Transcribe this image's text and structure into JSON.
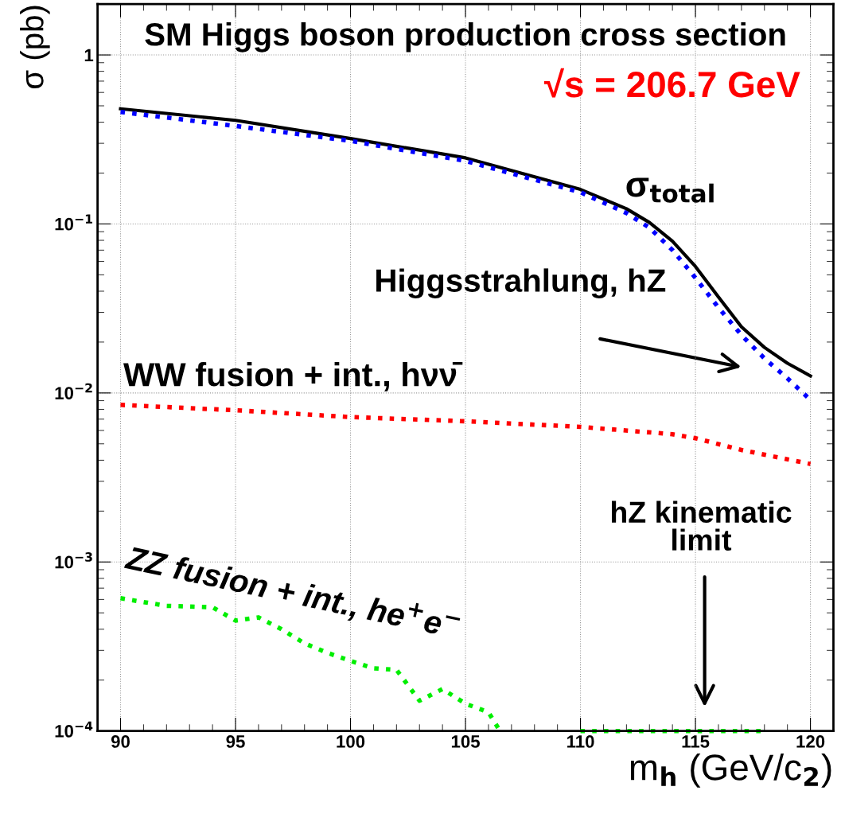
{
  "chart_data": {
    "type": "line",
    "title": "SM Higgs boson production cross section",
    "subtitle": "√s = 206.7 GeV",
    "xlabel": "m$_{h}$ (GeV/c$_{2}$)",
    "ylabel": "σ (pb)",
    "log": "y",
    "grid": true,
    "legend": false,
    "xlim": [
      89,
      121
    ],
    "xticks": [
      90,
      95,
      100,
      105,
      110,
      115,
      120
    ],
    "ylim": [
      0.0001,
      2
    ],
    "yticks": [
      {
        "value": 0.0001,
        "label": "10$^{−4}$"
      },
      {
        "value": 0.001,
        "label": "10$^{−3}$"
      },
      {
        "value": 0.01,
        "label": "10$^{−2}$"
      },
      {
        "value": 0.1,
        "label": "10$^{−1}$"
      },
      1
    ],
    "series": [
      {
        "color": "#000000",
        "line_style": "solid",
        "x": [
          90,
          95,
          100,
          105,
          110,
          112,
          113,
          114,
          115,
          116,
          117,
          118,
          119,
          120
        ],
        "values": [
          0.48,
          0.41,
          0.32,
          0.246,
          0.16,
          0.123,
          0.102,
          0.079,
          0.056,
          0.037,
          0.0246,
          0.0186,
          0.015,
          0.0126
        ]
      },
      {
        "color": "#0000ff",
        "line_style": "dotted",
        "x": [
          90,
          95,
          100,
          105,
          110,
          112,
          113,
          114,
          115,
          116,
          117,
          118,
          119,
          120
        ],
        "values": [
          0.46,
          0.38,
          0.31,
          0.236,
          0.154,
          0.116,
          0.095,
          0.07,
          0.048,
          0.032,
          0.022,
          0.016,
          0.0122,
          0.0091
        ]
      },
      {
        "color": "#ff0000",
        "line_style": "dotted",
        "x": [
          90,
          95,
          100,
          105,
          110,
          114,
          115,
          117,
          120
        ],
        "values": [
          0.0085,
          0.0079,
          0.0072,
          0.0068,
          0.0063,
          0.0057,
          0.0054,
          0.0046,
          0.0038
        ]
      },
      {
        "color": "#00ee00",
        "line_style": "dotted",
        "x": [
          90,
          92,
          94,
          95,
          96,
          97,
          98,
          99,
          100,
          101,
          102,
          103,
          104,
          105,
          106,
          106.5,
          108,
          110,
          112,
          114,
          116,
          118
        ],
        "values": [
          0.00061,
          0.00055,
          0.00054,
          0.00045,
          0.00047,
          0.0004,
          0.00033,
          0.00029,
          0.00026,
          0.000235,
          0.00023,
          0.000151,
          0.000177,
          0.000145,
          0.000129,
          0.0001,
          null,
          0.0001,
          0.0001,
          0.0001,
          0.0001,
          0.0001
        ]
      }
    ],
    "annotations": [
      "σ$_{total}$",
      "Higgsstrahlung, hZ",
      "WW fusion + int., hνν̄",
      "ZZ fusion + int., he$^{+}$e$^{−}$",
      "hZ kinematic\nlimit"
    ]
  }
}
